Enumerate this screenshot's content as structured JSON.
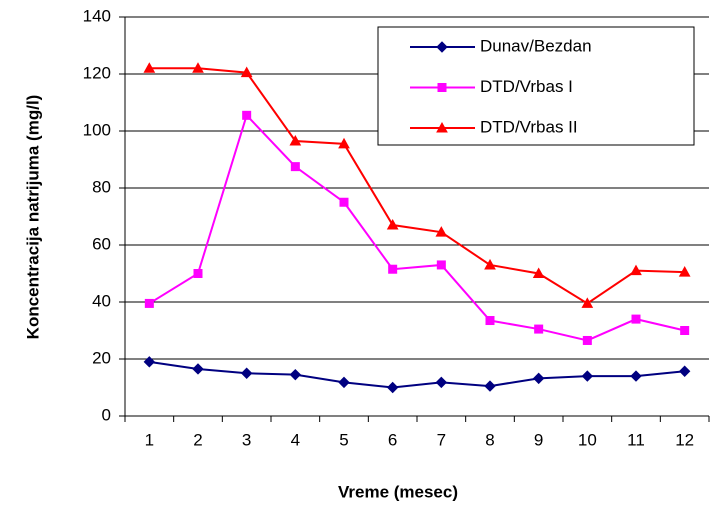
{
  "chart_data": {
    "type": "line",
    "xlabel": "Vreme (mesec)",
    "ylabel": "Koncentracija natrijuma (mg/l)",
    "categories": [
      "1",
      "2",
      "3",
      "4",
      "5",
      "6",
      "7",
      "8",
      "9",
      "10",
      "11",
      "12"
    ],
    "series": [
      {
        "name": "Dunav/Bezdan",
        "color": "#000080",
        "marker": "diamond",
        "values": [
          19,
          16.5,
          15,
          14.5,
          11.8,
          10,
          11.8,
          10.5,
          13.2,
          14,
          14,
          15.7
        ]
      },
      {
        "name": "DTD/Vrbas I",
        "color": "#ff00ff",
        "marker": "square",
        "values": [
          39.5,
          50,
          105.5,
          87.5,
          75,
          51.5,
          53,
          33.5,
          30.5,
          26.5,
          34,
          30
        ]
      },
      {
        "name": "DTD/Vrbas II",
        "color": "#ff0000",
        "marker": "triangle",
        "values": [
          122,
          122,
          120.5,
          96.5,
          95.5,
          67,
          64.5,
          53,
          50,
          39.5,
          51,
          50.5
        ]
      }
    ],
    "ylim": [
      0,
      140
    ],
    "yticks": [
      0,
      20,
      40,
      60,
      80,
      100,
      120,
      140
    ],
    "grid": true,
    "legend": "upper right"
  }
}
